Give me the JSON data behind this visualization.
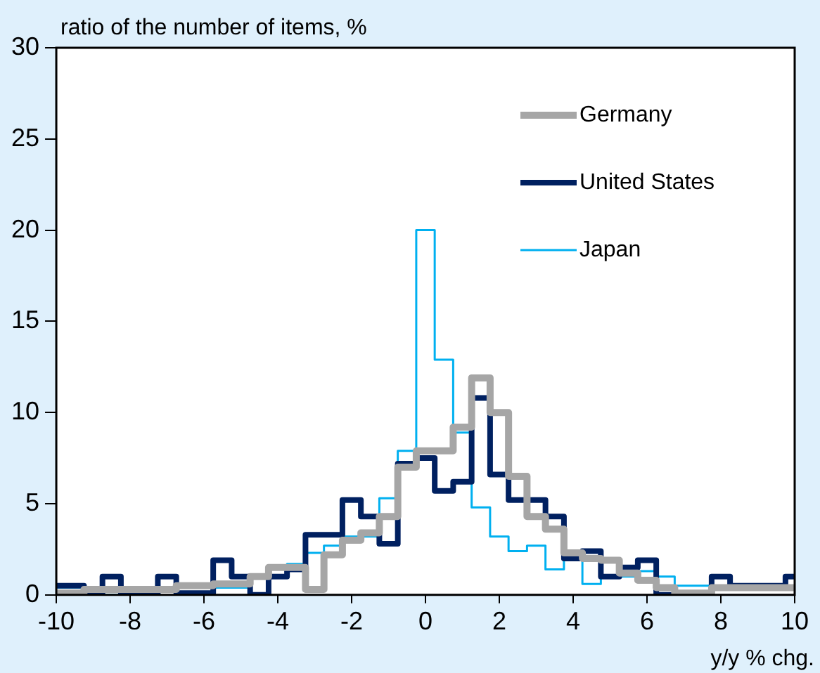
{
  "chart_data": {
    "type": "histogram",
    "ylabel": "ratio of the number of items, %",
    "xlabel": "y/y % chg.",
    "bins": [
      -10,
      -9.75,
      -9.25,
      -8.75,
      -8.25,
      -7.75,
      -7.25,
      -6.75,
      -6.25,
      -5.75,
      -5.25,
      -4.75,
      -4.25,
      -3.75,
      -3.25,
      -2.75,
      -2.25,
      -1.75,
      -1.25,
      -0.75,
      -0.25,
      0.25,
      0.75,
      1.25,
      1.75,
      2.25,
      2.75,
      3.25,
      3.75,
      4.25,
      4.75,
      5.25,
      5.75,
      6.25,
      6.75,
      7.25,
      7.75,
      8.25,
      8.75,
      9.25,
      9.75,
      10
    ],
    "series": [
      {
        "name": "Germany",
        "color": "#a6a6a6",
        "values": [
          0.1,
          0.1,
          0.3,
          0.3,
          0.3,
          0.3,
          0.3,
          0.5,
          0.5,
          0.6,
          0.6,
          1.0,
          1.5,
          1.5,
          0.3,
          2.2,
          3.0,
          3.4,
          4.3,
          7.0,
          7.9,
          7.9,
          9.2,
          11.9,
          10.0,
          6.5,
          4.3,
          3.6,
          2.3,
          2.0,
          1.9,
          1.2,
          0.8,
          0.4,
          0.1,
          0.1,
          0.4,
          0.4,
          0.4,
          0.4,
          0.4
        ]
      },
      {
        "name": "United States",
        "color": "#002060",
        "values": [
          0.5,
          0.5,
          0,
          1.0,
          0,
          0,
          1.0,
          0.1,
          0.1,
          1.9,
          1.0,
          0,
          1.0,
          1.4,
          3.3,
          3.3,
          5.2,
          4.3,
          2.8,
          7.2,
          7.5,
          5.7,
          6.2,
          10.8,
          6.6,
          5.2,
          5.2,
          4.3,
          2.0,
          2.4,
          1.0,
          1.5,
          1.9,
          0,
          0,
          0,
          1.0,
          0.5,
          0.5,
          0.5,
          1.0
        ]
      },
      {
        "name": "Japan",
        "color": "#00b0f0",
        "values": [
          0.4,
          0.4,
          0,
          0,
          0.4,
          0.3,
          0.3,
          0.4,
          0.4,
          0.4,
          0.4,
          1.0,
          1.4,
          1.7,
          2.3,
          2.7,
          3.2,
          3.2,
          5.3,
          7.9,
          20.0,
          12.9,
          8.9,
          4.8,
          3.2,
          2.4,
          2.7,
          1.4,
          2.2,
          0.6,
          1.0,
          1.0,
          1.3,
          1.0,
          0.5,
          0.5,
          0.3,
          0.3,
          0.3,
          0.3,
          0.3
        ]
      }
    ],
    "xlim": [
      -10,
      10
    ],
    "xticks": [
      -10,
      -8,
      -6,
      -4,
      -2,
      0,
      2,
      4,
      6,
      8,
      10
    ],
    "ylim": [
      0,
      30
    ],
    "yticks": [
      0,
      5,
      10,
      15,
      20,
      25,
      30
    ],
    "grid": false,
    "legend": "top right"
  }
}
